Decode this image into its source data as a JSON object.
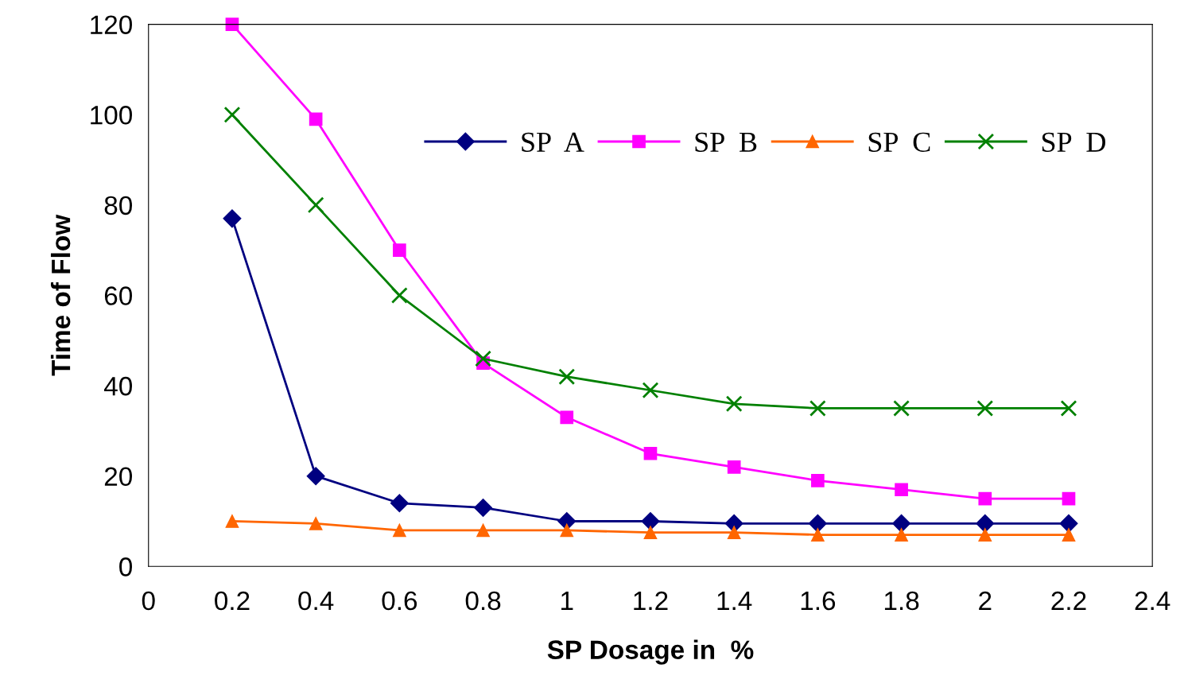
{
  "chart_data": {
    "type": "line",
    "xlabel": "SP Dosage in  %",
    "ylabel": "Time of Flow",
    "x": [
      0.2,
      0.4,
      0.6,
      0.8,
      1,
      1.2,
      1.4,
      1.6,
      1.8,
      2,
      2.2
    ],
    "series": [
      {
        "name": "SP  A",
        "color": "#000080",
        "marker": "diamond",
        "values": [
          77,
          20,
          14,
          13,
          10,
          10,
          9.5,
          9.5,
          9.5,
          9.5,
          9.5
        ]
      },
      {
        "name": "SP  B",
        "color": "#ff00ff",
        "marker": "square",
        "values": [
          120,
          99,
          70,
          45,
          33,
          25,
          22,
          19,
          17,
          15,
          15
        ]
      },
      {
        "name": "SP  C",
        "color": "#ff6600",
        "marker": "triangle",
        "values": [
          10,
          9.5,
          8,
          8,
          8,
          7.5,
          7.5,
          7,
          7,
          7,
          7
        ]
      },
      {
        "name": "SP  D",
        "color": "#008000",
        "marker": "cross",
        "values": [
          100,
          80,
          60,
          46,
          42,
          39,
          36,
          35,
          35,
          35,
          35
        ]
      }
    ],
    "xlim": [
      0,
      2.4
    ],
    "xticks": [
      0,
      0.2,
      0.4,
      0.6,
      0.8,
      1,
      1.2,
      1.4,
      1.6,
      1.8,
      2,
      2.2,
      2.4
    ],
    "ylim": [
      0,
      120
    ],
    "yticks": [
      0,
      20,
      40,
      60,
      80,
      100,
      120
    ],
    "grid": false,
    "legend": "top right",
    "line_style": "solid"
  }
}
